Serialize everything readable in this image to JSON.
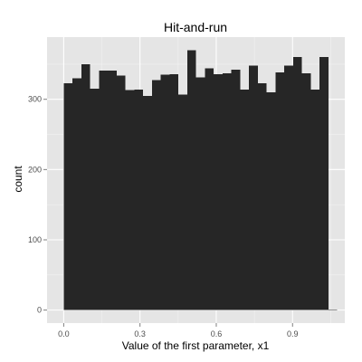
{
  "chart_data": {
    "type": "bar",
    "title": "Hit-and-run",
    "xlabel": "Value of the first parameter, x1",
    "ylabel": "count",
    "xlim": [
      -0.0655,
      1.1055
    ],
    "ylim": [
      -18.5,
      388.5
    ],
    "x_ticks": [
      0.0,
      0.3,
      0.6,
      0.9
    ],
    "x_tick_labels": [
      "0.0",
      "0.3",
      "0.6",
      "0.9"
    ],
    "y_ticks": [
      0,
      100,
      200,
      300
    ],
    "y_tick_labels": [
      "0",
      "100",
      "200",
      "300"
    ],
    "grid": true,
    "bin_width": 0.0347,
    "bin_start": 0.0,
    "values": [
      323,
      330,
      350,
      315,
      341,
      341,
      334,
      313,
      314,
      305,
      327,
      335,
      336,
      307,
      370,
      331,
      344,
      336,
      337,
      342,
      314,
      348,
      323,
      310,
      338,
      348,
      360,
      337,
      314,
      360,
      1
    ],
    "colors": {
      "panel_background": "#e5e5e5",
      "grid_major": "#ffffff",
      "grid_minor": "#f2f2f2",
      "bar_fill": "#262626",
      "tick_mark": "#7f7f7f"
    }
  }
}
